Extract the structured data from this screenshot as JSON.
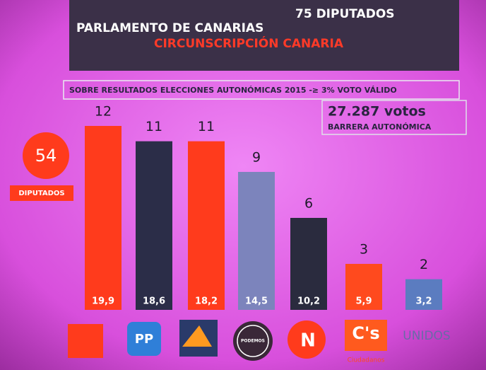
{
  "chart_data": {
    "type": "bar",
    "title": "PARLAMENTO DE CANARIAS",
    "title_right": "75 DIPUTADOS",
    "subtitle": "CIRCUNSCRIPCIÓN CANARIA",
    "note": "SOBRE RESULTADOS ELECCIONES AUTONÓMICAS 2015 -≥ 3% VOTO VÁLIDO",
    "threshold": "27.287 votos",
    "threshold_label": "BARRERA AUTONÓMICA",
    "total_seats": 54,
    "total_label": "DIPUTADOS",
    "categories": [
      null,
      "PP",
      null,
      "PODEMOS",
      "N",
      "C's",
      "UNIDOS"
    ],
    "category_sublabel": "Ciudadanos",
    "values": [
      12,
      11,
      11,
      9,
      6,
      3,
      2
    ],
    "percent": [
      19.9,
      18.6,
      18.2,
      14.5,
      10.2,
      5.9,
      3.2
    ],
    "percent_labels": [
      "19,9",
      "18,6",
      "18,2",
      "14,5",
      "10,2",
      "5,9",
      "3,2"
    ],
    "colors": [
      "#ff3b1c",
      "#2b2d48",
      "#ff3b1c",
      "#7c84bc",
      "#2a2b3e",
      "#ff4a1e",
      "#5b7cc0"
    ]
  }
}
